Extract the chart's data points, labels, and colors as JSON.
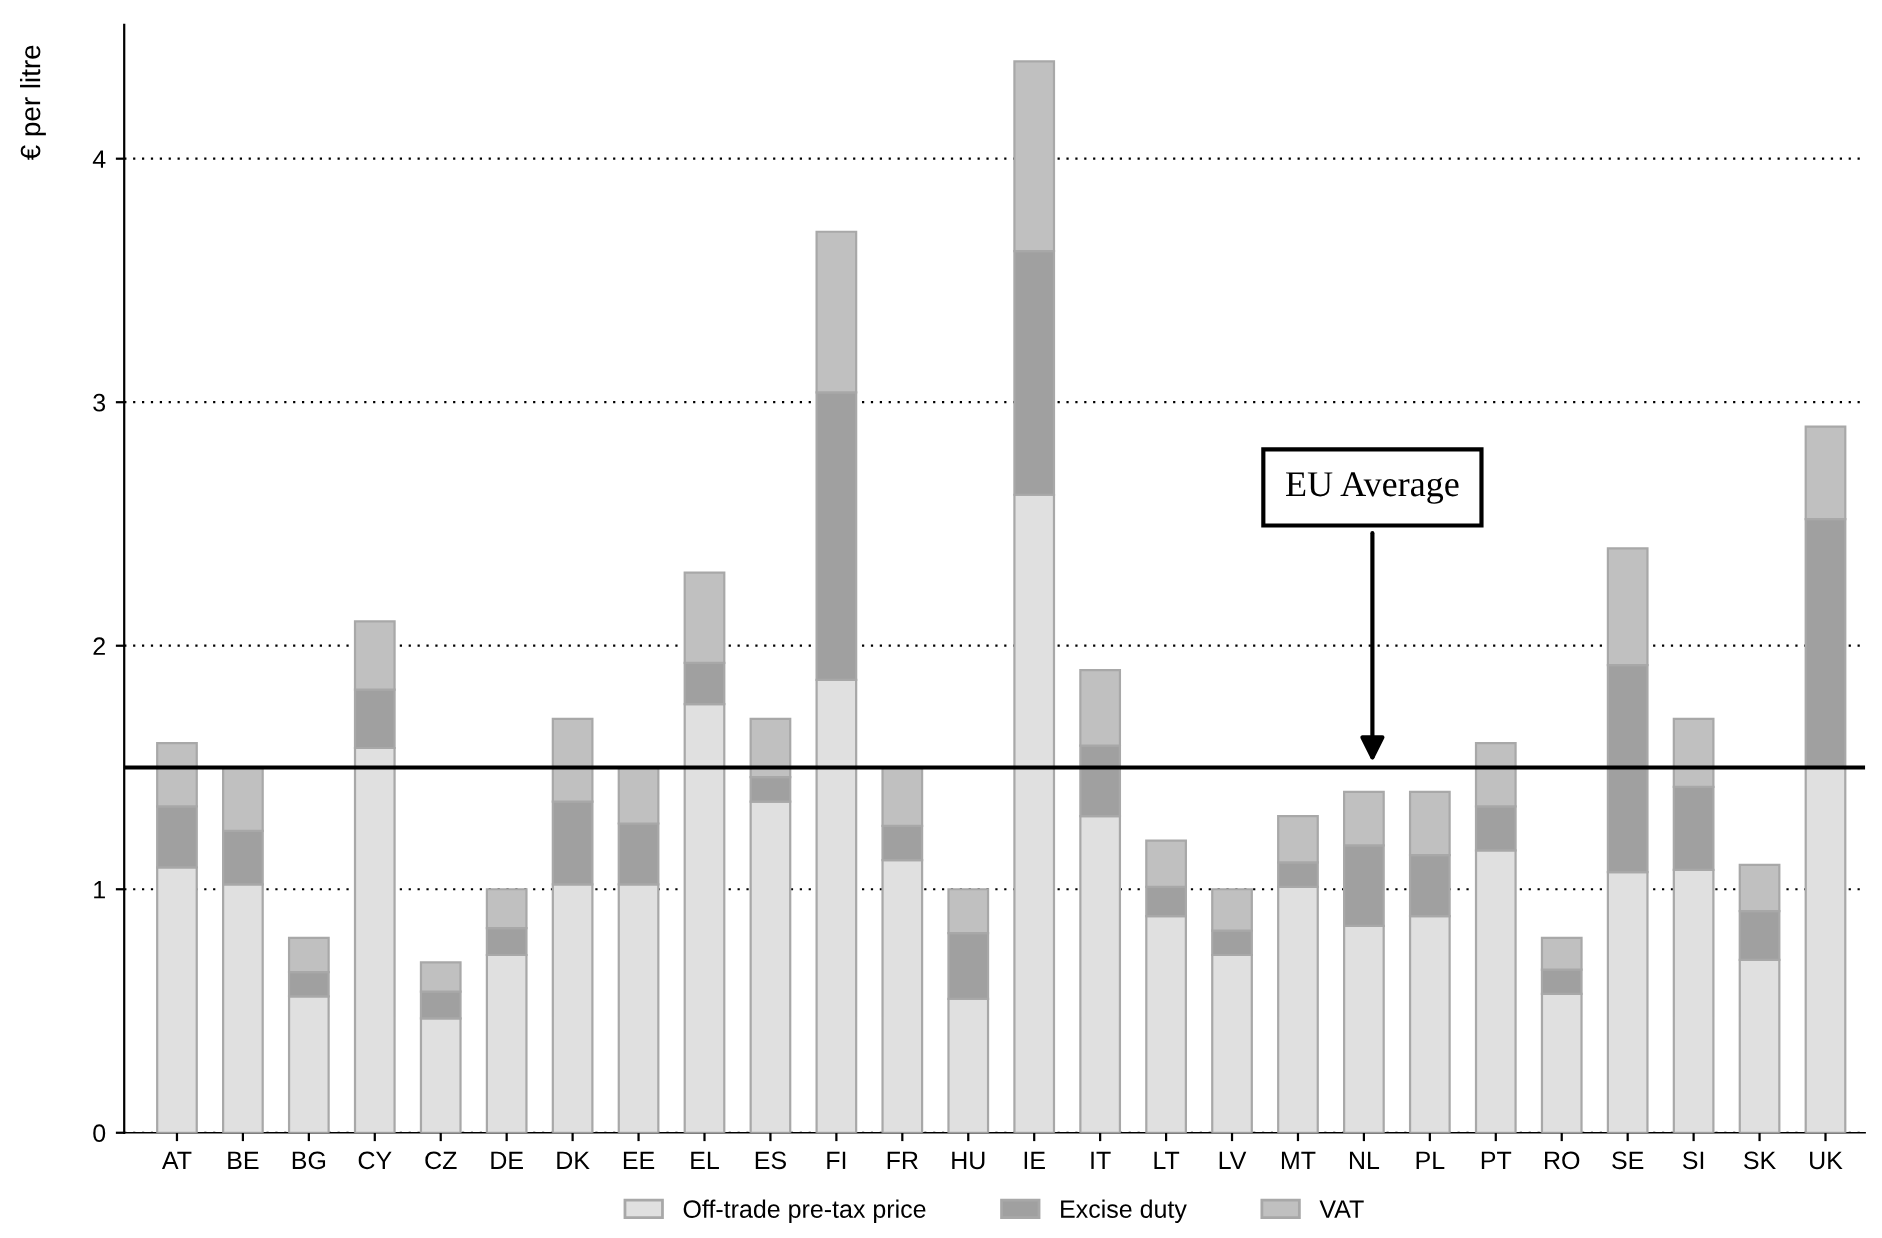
{
  "chart_data": {
    "type": "bar",
    "stacked": true,
    "ylabel": "€ per litre",
    "categories": [
      "AT",
      "BE",
      "BG",
      "CY",
      "CZ",
      "DE",
      "DK",
      "EE",
      "EL",
      "ES",
      "FI",
      "FR",
      "HU",
      "IE",
      "IT",
      "LT",
      "LV",
      "MT",
      "NL",
      "PL",
      "PT",
      "RO",
      "SE",
      "SI",
      "SK",
      "UK"
    ],
    "series": [
      {
        "name": "Off-trade pre-tax price",
        "color": "#e0e0e0",
        "values": [
          1.09,
          1.02,
          0.56,
          1.58,
          0.47,
          0.73,
          1.02,
          1.02,
          1.76,
          1.36,
          1.86,
          1.12,
          0.55,
          2.62,
          1.3,
          0.89,
          0.73,
          1.01,
          0.85,
          0.89,
          1.16,
          0.57,
          1.07,
          1.08,
          0.71,
          1.5
        ]
      },
      {
        "name": "Excise duty",
        "color": "#a0a0a0",
        "values": [
          0.25,
          0.22,
          0.1,
          0.24,
          0.11,
          0.11,
          0.34,
          0.25,
          0.17,
          0.1,
          1.18,
          0.14,
          0.27,
          1.0,
          0.29,
          0.12,
          0.1,
          0.1,
          0.33,
          0.25,
          0.18,
          0.1,
          0.85,
          0.34,
          0.2,
          1.02
        ]
      },
      {
        "name": "VAT",
        "color": "#c0c0c0",
        "values": [
          0.26,
          0.26,
          0.14,
          0.28,
          0.12,
          0.16,
          0.34,
          0.23,
          0.37,
          0.24,
          0.66,
          0.24,
          0.18,
          0.78,
          0.31,
          0.19,
          0.17,
          0.19,
          0.22,
          0.26,
          0.26,
          0.13,
          0.48,
          0.28,
          0.19,
          0.38
        ]
      }
    ],
    "ylim": [
      0,
      4.55
    ],
    "yticks": [
      0,
      1,
      2,
      3,
      4
    ],
    "grid": "y",
    "legend": "bottom",
    "ref_lines": [
      {
        "axis": "y",
        "value": 1.5,
        "label": "EU Average",
        "color": "#000000",
        "line_style": "solid"
      }
    ]
  }
}
